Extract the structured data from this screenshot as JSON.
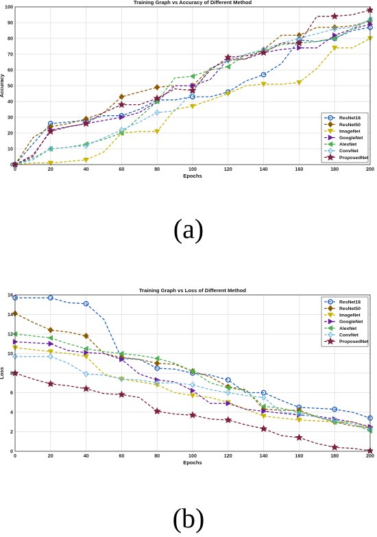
{
  "panels": {
    "a": "(a)",
    "b": "(b)"
  },
  "styles": {
    "ResNet18": {
      "color": "#1f5fbf",
      "marker": "circle"
    },
    "ResNet50": {
      "color": "#8b5a00",
      "marker": "diamond"
    },
    "ImageNet": {
      "color": "#c8b400",
      "marker": "tri-down"
    },
    "GoogleNet": {
      "color": "#6a1b9a",
      "marker": "tri-right"
    },
    "AlexNet": {
      "color": "#4caf50",
      "marker": "tri-left"
    },
    "ConvNet": {
      "color": "#6fb7e6",
      "marker": "diamond-open"
    },
    "ProposedNet": {
      "color": "#7a1f3d",
      "marker": "star"
    }
  },
  "chart_data": [
    {
      "type": "line",
      "title": "Training Graph vs Accuracy of Different Method",
      "xlabel": "Epochs",
      "ylabel": "Accuracy",
      "xlim": [
        0,
        200
      ],
      "ylim": [
        0,
        100
      ],
      "xticks": [
        0,
        20,
        40,
        60,
        80,
        100,
        120,
        140,
        160,
        180,
        200
      ],
      "yticks": [
        0,
        10,
        20,
        30,
        40,
        50,
        60,
        70,
        80,
        90,
        100
      ],
      "grid": true,
      "legend": "bottom-right",
      "x": [
        0,
        10,
        20,
        30,
        40,
        50,
        60,
        70,
        80,
        90,
        100,
        110,
        120,
        130,
        140,
        150,
        160,
        170,
        180,
        190,
        200
      ],
      "series": [
        {
          "name": "ResNet18",
          "values": [
            0,
            13,
            26,
            27,
            28,
            31,
            31,
            35,
            41,
            41,
            43,
            43,
            46,
            53,
            57,
            64,
            79,
            78,
            80,
            85,
            87
          ]
        },
        {
          "name": "ResNet50",
          "values": [
            0,
            17,
            24,
            26,
            29,
            33,
            43,
            46,
            49,
            50,
            50,
            61,
            66,
            67,
            73,
            82,
            82,
            87,
            87,
            88,
            91
          ]
        },
        {
          "name": "ImageNet",
          "values": [
            0,
            1,
            1,
            2,
            3,
            8,
            20,
            21,
            21,
            35,
            37,
            41,
            45,
            50,
            51,
            51,
            52,
            61,
            74,
            74,
            80
          ]
        },
        {
          "name": "GoogleNet",
          "values": [
            0,
            5,
            22,
            24,
            26,
            28,
            30,
            33,
            40,
            50,
            50,
            54,
            67,
            67,
            71,
            73,
            74,
            74,
            82,
            86,
            89
          ]
        },
        {
          "name": "AlexNet",
          "values": [
            0,
            4,
            10,
            11,
            13,
            16,
            20,
            30,
            40,
            55,
            56,
            60,
            62,
            70,
            72,
            76,
            77,
            78,
            80,
            86,
            92
          ]
        },
        {
          "name": "ConvNet",
          "values": [
            0,
            3,
            10,
            11,
            12,
            17,
            22,
            27,
            33,
            34,
            46,
            61,
            66,
            70,
            73,
            77,
            80,
            83,
            86,
            87,
            92
          ]
        },
        {
          "name": "ProposedNet",
          "values": [
            0,
            6,
            21,
            24,
            26,
            33,
            38,
            38,
            42,
            48,
            47,
            60,
            68,
            69,
            71,
            77,
            77,
            94,
            94,
            95,
            98
          ]
        }
      ]
    },
    {
      "type": "line",
      "title": "Training Graph vs Loss of Different Method",
      "xlabel": "Epochs",
      "ylabel": "Loss",
      "xlim": [
        0,
        200
      ],
      "ylim": [
        0,
        16
      ],
      "xticks": [
        0,
        20,
        40,
        60,
        80,
        100,
        120,
        140,
        160,
        180,
        200
      ],
      "yticks": [
        0,
        2,
        4,
        6,
        8,
        10,
        12,
        14,
        16
      ],
      "grid": true,
      "legend": "top-right",
      "x": [
        0,
        10,
        20,
        30,
        40,
        50,
        60,
        70,
        80,
        90,
        100,
        110,
        120,
        130,
        140,
        150,
        160,
        170,
        180,
        190,
        200
      ],
      "series": [
        {
          "name": "ResNet18",
          "values": [
            15.7,
            15.7,
            15.7,
            15.2,
            15.1,
            13.5,
            9.5,
            9.4,
            8.5,
            8.4,
            8.0,
            7.8,
            7.3,
            6.0,
            6.0,
            5.2,
            4.5,
            4.4,
            4.3,
            4.0,
            3.4
          ]
        },
        {
          "name": "ResNet50",
          "values": [
            14.1,
            13.2,
            12.4,
            12.2,
            11.8,
            10.0,
            9.6,
            9.4,
            9.0,
            8.9,
            8.2,
            7.6,
            6.6,
            6.3,
            4.3,
            4.2,
            4.2,
            3.5,
            3.0,
            2.6,
            2.4
          ]
        },
        {
          "name": "ImageNet",
          "values": [
            10.6,
            10.4,
            10.2,
            10.0,
            9.7,
            7.9,
            7.4,
            7.1,
            6.8,
            6.0,
            5.7,
            5.5,
            5.0,
            4.3,
            3.6,
            3.4,
            3.2,
            3.1,
            3.0,
            3.0,
            2.4
          ]
        },
        {
          "name": "GoogleNet",
          "values": [
            11.2,
            11.1,
            11.0,
            10.3,
            10.1,
            10.0,
            9.4,
            7.9,
            7.3,
            7.1,
            6.2,
            4.9,
            4.9,
            4.3,
            4.1,
            3.9,
            3.7,
            3.6,
            3.3,
            3.0,
            2.5
          ]
        },
        {
          "name": "AlexNet",
          "values": [
            12.0,
            11.8,
            11.6,
            11.0,
            10.5,
            10.2,
            10.0,
            9.8,
            9.5,
            9.0,
            8.2,
            7.0,
            6.5,
            6.2,
            4.6,
            4.4,
            4.0,
            3.6,
            3.0,
            2.8,
            2.1
          ]
        },
        {
          "name": "ConvNet",
          "values": [
            9.7,
            9.7,
            9.7,
            9.0,
            7.9,
            7.8,
            7.4,
            7.3,
            7.0,
            7.0,
            6.8,
            6.3,
            6.0,
            5.7,
            5.5,
            4.0,
            3.8,
            3.5,
            3.2,
            2.8,
            2.3
          ]
        },
        {
          "name": "ProposedNet",
          "values": [
            8.0,
            7.4,
            6.9,
            6.7,
            6.4,
            5.9,
            5.8,
            5.5,
            4.1,
            3.8,
            3.7,
            3.3,
            3.2,
            2.7,
            2.3,
            1.6,
            1.4,
            0.8,
            0.4,
            0.3,
            0.05
          ]
        }
      ]
    }
  ]
}
